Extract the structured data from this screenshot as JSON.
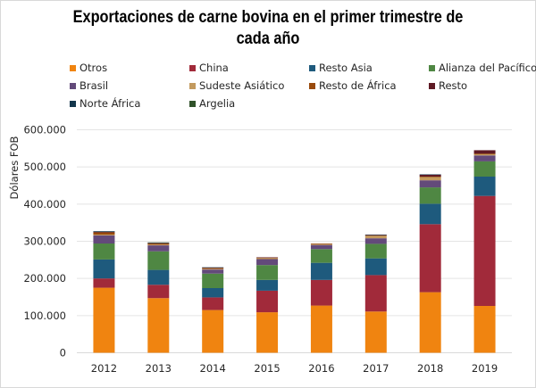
{
  "chart_data": {
    "type": "bar",
    "stacked": true,
    "title": "Exportaciones de carne bovina en el primer trimestre de cada año",
    "title_lines": [
      "Exportaciones de carne bovina en el primer trimestre de",
      "cada año"
    ],
    "xlabel": "",
    "ylabel": "Dólares FOB",
    "ylim": [
      0,
      600000
    ],
    "yticks": [
      0,
      100000,
      200000,
      300000,
      400000,
      500000,
      600000
    ],
    "ytick_labels": [
      "0",
      "100.000",
      "200.000",
      "300.000",
      "400.000",
      "500.000",
      "600.000"
    ],
    "grid": true,
    "legend_position": "top",
    "categories": [
      "2012",
      "2013",
      "2014",
      "2015",
      "2016",
      "2017",
      "2018",
      "2019"
    ],
    "series": [
      {
        "name": "Otros",
        "color": "#F08410",
        "values": [
          175000,
          147000,
          115000,
          109000,
          127000,
          111000,
          163000,
          126000
        ]
      },
      {
        "name": "China",
        "color": "#A12A3A",
        "values": [
          25000,
          36000,
          34000,
          58000,
          69000,
          98000,
          183000,
          296000
        ]
      },
      {
        "name": "Resto Asia",
        "color": "#1E5A7D",
        "values": [
          51000,
          40000,
          25000,
          29000,
          46000,
          45000,
          55000,
          52000
        ]
      },
      {
        "name": "Alianza del Pacífico",
        "color": "#4F8743",
        "values": [
          43000,
          50000,
          39000,
          40000,
          37000,
          39000,
          44000,
          41000
        ]
      },
      {
        "name": "Brasil",
        "color": "#634A7A",
        "values": [
          22000,
          16000,
          11000,
          16000,
          11000,
          15000,
          19000,
          16000
        ]
      },
      {
        "name": "Sudeste Asiático",
        "color": "#C39A5E",
        "values": [
          2000,
          2000,
          2000,
          3000,
          2000,
          7000,
          9000,
          3000
        ]
      },
      {
        "name": "Resto de África",
        "color": "#994A0C",
        "values": [
          6000,
          3000,
          2000,
          1000,
          2000,
          1000,
          1000,
          2000
        ]
      },
      {
        "name": "Resto",
        "color": "#5E1A24",
        "values": [
          1000,
          1000,
          1000,
          1000,
          0,
          1000,
          5000,
          9000
        ]
      },
      {
        "name": "Norte África",
        "color": "#13364C",
        "values": [
          2000,
          1000,
          1000,
          0,
          0,
          1000,
          1000,
          0
        ]
      },
      {
        "name": "Argelia",
        "color": "#30522A",
        "values": [
          0,
          1000,
          0,
          0,
          0,
          0,
          0,
          0
        ]
      }
    ]
  }
}
